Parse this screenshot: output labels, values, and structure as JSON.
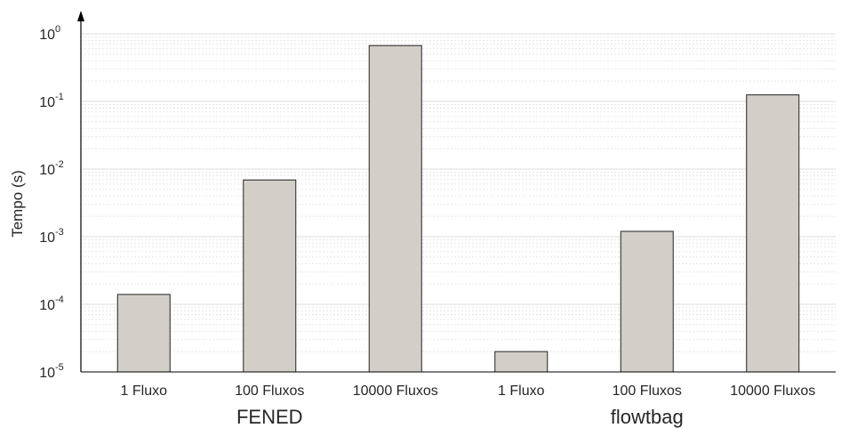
{
  "chart_data": {
    "type": "bar",
    "scale": "log",
    "ylabel": "Tempo (s)",
    "ylim": [
      1e-05,
      1
    ],
    "grid": true,
    "colors": {
      "bar_fill": "#d3cfc8",
      "bar_stroke": "#222222",
      "grid": "#dedede",
      "axis": "#000000"
    },
    "y_ticks": [
      {
        "base": "10",
        "exp": "0",
        "value": 1
      },
      {
        "base": "10",
        "exp": "-1",
        "value": 0.1
      },
      {
        "base": "10",
        "exp": "-2",
        "value": 0.01
      },
      {
        "base": "10",
        "exp": "-3",
        "value": 0.001
      },
      {
        "base": "10",
        "exp": "-4",
        "value": 0.0001
      },
      {
        "base": "10",
        "exp": "-5",
        "value": 1e-05
      }
    ],
    "categories": [
      "1 Fluxo",
      "100 Fluxos",
      "10000 Fluxos",
      "1 Fluxo",
      "100 Fluxos",
      "10000 Fluxos"
    ],
    "values": [
      0.00014,
      0.0069,
      0.67,
      2e-05,
      0.0012,
      0.125
    ],
    "groups": [
      {
        "label": "FENED",
        "indices": [
          0,
          1,
          2
        ]
      },
      {
        "label": "flowtbag",
        "indices": [
          3,
          4,
          5
        ]
      }
    ]
  }
}
